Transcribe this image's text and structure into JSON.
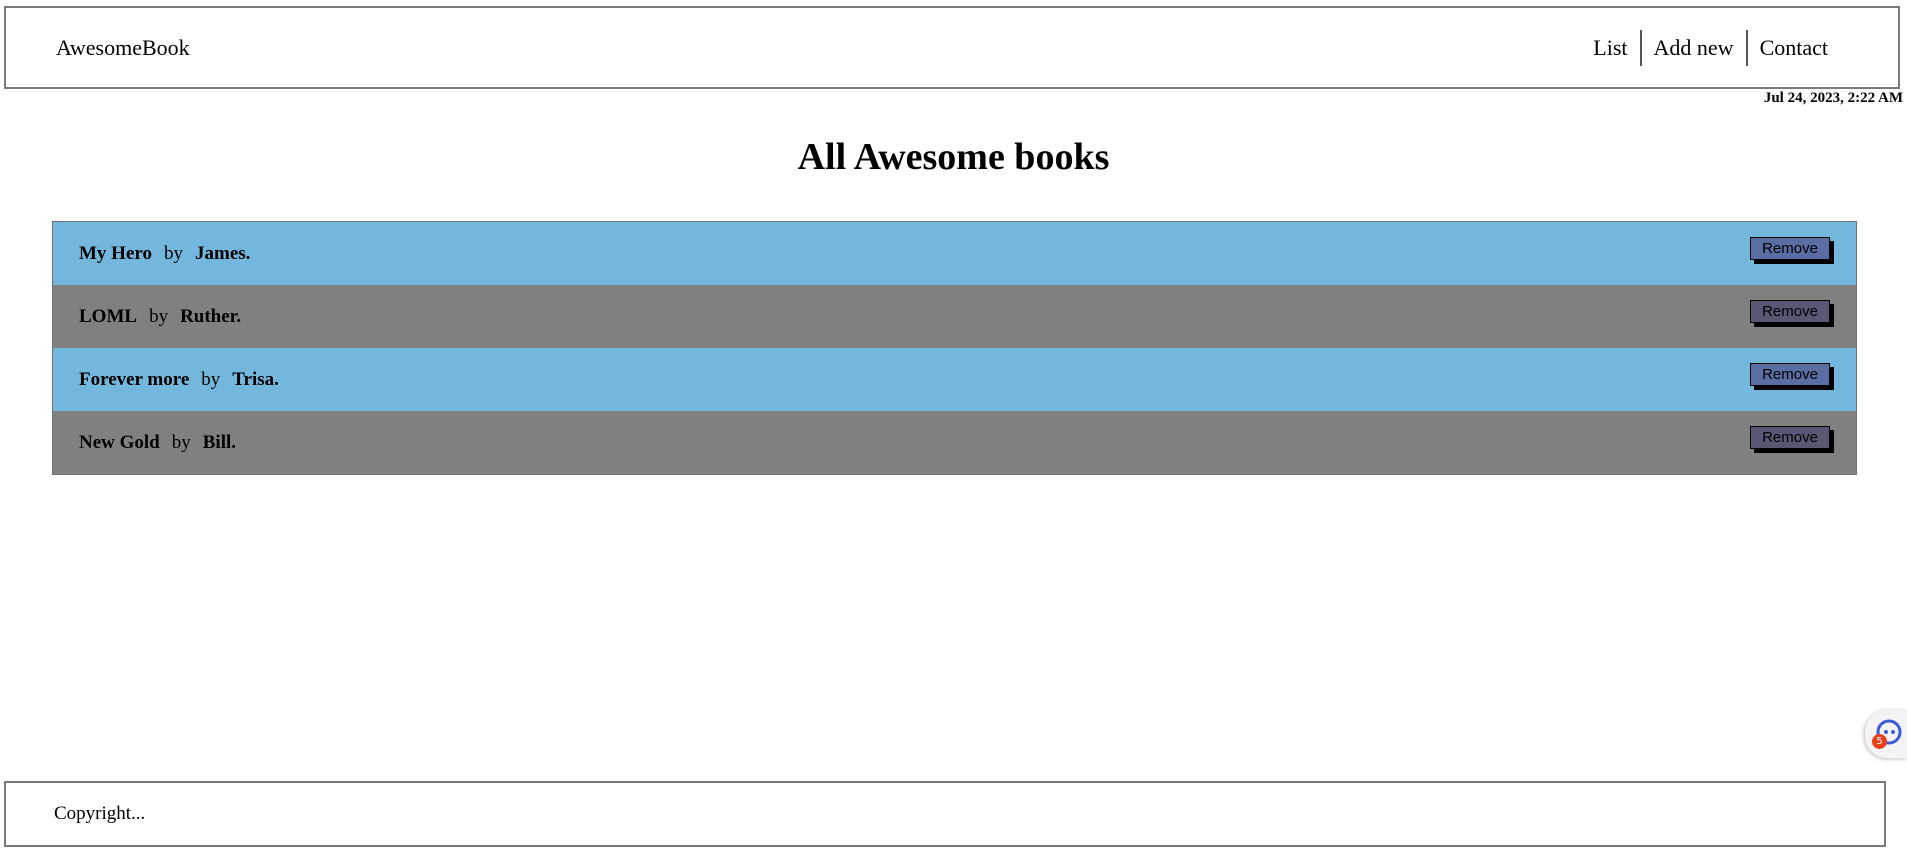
{
  "header": {
    "brand": "AwesomeBook",
    "nav": [
      {
        "label": "List"
      },
      {
        "label": "Add new"
      },
      {
        "label": "Contact"
      }
    ],
    "date": "Jul 24, 2023, 2:22 AM"
  },
  "main": {
    "title": "All Awesome books",
    "books": [
      {
        "title": "My Hero",
        "by": "by",
        "author": "James.",
        "remove_label": "Remove"
      },
      {
        "title": "LOML",
        "by": "by",
        "author": "Ruther.",
        "remove_label": "Remove"
      },
      {
        "title": "Forever more",
        "by": "by",
        "author": "Trisa.",
        "remove_label": "Remove"
      },
      {
        "title": "New Gold",
        "by": "by",
        "author": "Bill.",
        "remove_label": "Remove"
      }
    ]
  },
  "footer": {
    "copyright": "Copyright..."
  },
  "widget": {
    "badge_count": "5",
    "icon": "assistant-face-icon"
  },
  "colors": {
    "row_odd": "#74b7dd",
    "row_even": "#808080",
    "remove_odd": "#5a6ea3",
    "remove_even": "#575873",
    "badge": "#e8401c"
  }
}
